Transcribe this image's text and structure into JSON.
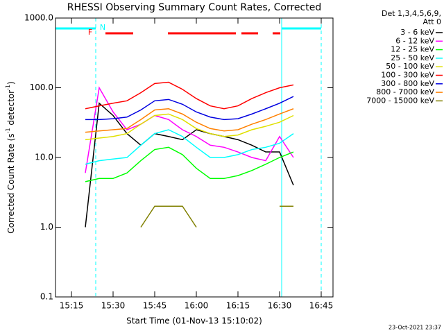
{
  "chart_data": {
    "type": "line",
    "title": "RHESSI Observing Summary Count Rates, Corrected",
    "x_label": "Start Time (01-Nov-13 15:10:02)",
    "y_label_parts": [
      "Corrected Count Rate (s",
      "-1",
      " detector",
      "-1",
      ")"
    ],
    "legend_title": [
      "Det 1,3,4,5,6,9,",
      "Att 0"
    ],
    "timestamp": "23-Oct-2021 23:37",
    "annotations": [
      "F",
      "N"
    ],
    "log_y": true,
    "xlim": [
      909.25,
      1009.25
    ],
    "ylim": [
      0.1,
      1000
    ],
    "xticks": [
      {
        "value": 915,
        "label": "15:15"
      },
      {
        "value": 930,
        "label": "15:30"
      },
      {
        "value": 945,
        "label": "15:45"
      },
      {
        "value": 960,
        "label": "16:00"
      },
      {
        "value": 975,
        "label": "16:15"
      },
      {
        "value": 990,
        "label": "16:30"
      },
      {
        "value": 1005,
        "label": "16:45"
      }
    ],
    "yticks": [
      {
        "value": 0.1,
        "label": "0.1"
      },
      {
        "value": 1,
        "label": "1.0"
      },
      {
        "value": 10,
        "label": "10.0"
      },
      {
        "value": 100,
        "label": "100.0"
      },
      {
        "value": 1000,
        "label": "1000.0"
      }
    ],
    "x": [
      920,
      925,
      930,
      935,
      940,
      945,
      950,
      955,
      960,
      965,
      970,
      975,
      980,
      985,
      990,
      995
    ],
    "series": [
      {
        "name": "3 - 6 keV",
        "color": "#000000",
        "values": [
          1,
          60,
          40,
          22,
          15,
          22,
          20,
          18,
          25,
          22,
          20,
          18,
          15,
          12,
          12,
          4
        ]
      },
      {
        "name": "6 - 12 keV",
        "color": "#ff00ff",
        "values": [
          6,
          100,
          45,
          25,
          30,
          40,
          35,
          25,
          20,
          15,
          14,
          12,
          10,
          9,
          20,
          10
        ]
      },
      {
        "name": "12 - 25 keV",
        "color": "#00ff00",
        "values": [
          4.5,
          5,
          5,
          6,
          9,
          13,
          14,
          11,
          7,
          5,
          5,
          5.5,
          6.5,
          8,
          10,
          12
        ]
      },
      {
        "name": "25 - 50 keV",
        "color": "#00ffff",
        "values": [
          8,
          9,
          9.5,
          10,
          15,
          22,
          25,
          20,
          14,
          10,
          10,
          11,
          13,
          14,
          16,
          22
        ]
      },
      {
        "name": "50 - 100 keV",
        "color": "#e0e000",
        "values": [
          18,
          19,
          20,
          22,
          30,
          40,
          42,
          35,
          26,
          22,
          20,
          21,
          25,
          28,
          32,
          40
        ]
      },
      {
        "name": "100 - 300 keV",
        "color": "#ff0000",
        "values": [
          50,
          55,
          60,
          65,
          85,
          115,
          120,
          95,
          70,
          55,
          50,
          55,
          70,
          85,
          100,
          110
        ]
      },
      {
        "name": "300 - 800 keV",
        "color": "#0000e0",
        "values": [
          35,
          35,
          36,
          38,
          48,
          65,
          68,
          58,
          45,
          38,
          35,
          36,
          42,
          50,
          60,
          75
        ]
      },
      {
        "name": "800 - 7000 keV",
        "color": "#ff8000",
        "values": [
          23,
          24,
          25,
          26,
          35,
          48,
          50,
          42,
          32,
          26,
          24,
          25,
          30,
          35,
          42,
          50
        ]
      },
      {
        "name": "7000 - 15000 keV",
        "color": "#808000",
        "values": [
          null,
          null,
          null,
          null,
          1,
          2,
          2,
          2,
          1,
          null,
          null,
          null,
          null,
          null,
          2,
          2
        ]
      }
    ]
  }
}
